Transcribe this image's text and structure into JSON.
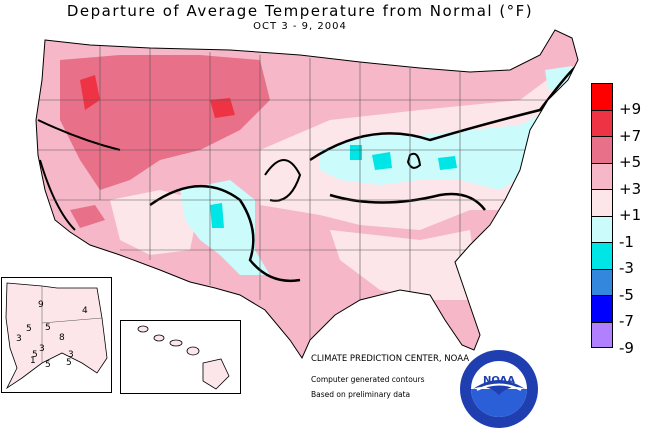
{
  "title": "Departure of Average Temperature from Normal (°F)",
  "subtitle": "OCT 3 - 9, 2004",
  "legend": {
    "levels": [
      {
        "label": "+9",
        "color": "#ff0000"
      },
      {
        "label": "+7",
        "color": "#ee3344"
      },
      {
        "label": "+5",
        "color": "#e87088"
      },
      {
        "label": "+3",
        "color": "#f6b8c8"
      },
      {
        "label": "+1",
        "color": "#fde6ea"
      },
      {
        "label": "-1",
        "color": "#cbfbfb"
      },
      {
        "label": "-3",
        "color": "#00e5e5"
      },
      {
        "label": "-5",
        "color": "#3388dd"
      },
      {
        "label": "-7",
        "color": "#0000ff"
      },
      {
        "label": "-9",
        "color": "#b080ff"
      }
    ]
  },
  "credit": "CLIMATE PREDICTION CENTER, NOAA",
  "note1": "Computer generated contours",
  "note2": "Based on preliminary data",
  "alaska_values": [
    "9",
    "5",
    "5",
    "8",
    "3",
    "3",
    "5",
    "5",
    "1",
    "5",
    "4",
    "3"
  ],
  "logo": {
    "text": "NOAA",
    "ring_text": "NATIONAL OCEANIC AND ATMOSPHERIC ADMINISTRATION · U.S. DEPARTMENT OF COMMERCE"
  }
}
